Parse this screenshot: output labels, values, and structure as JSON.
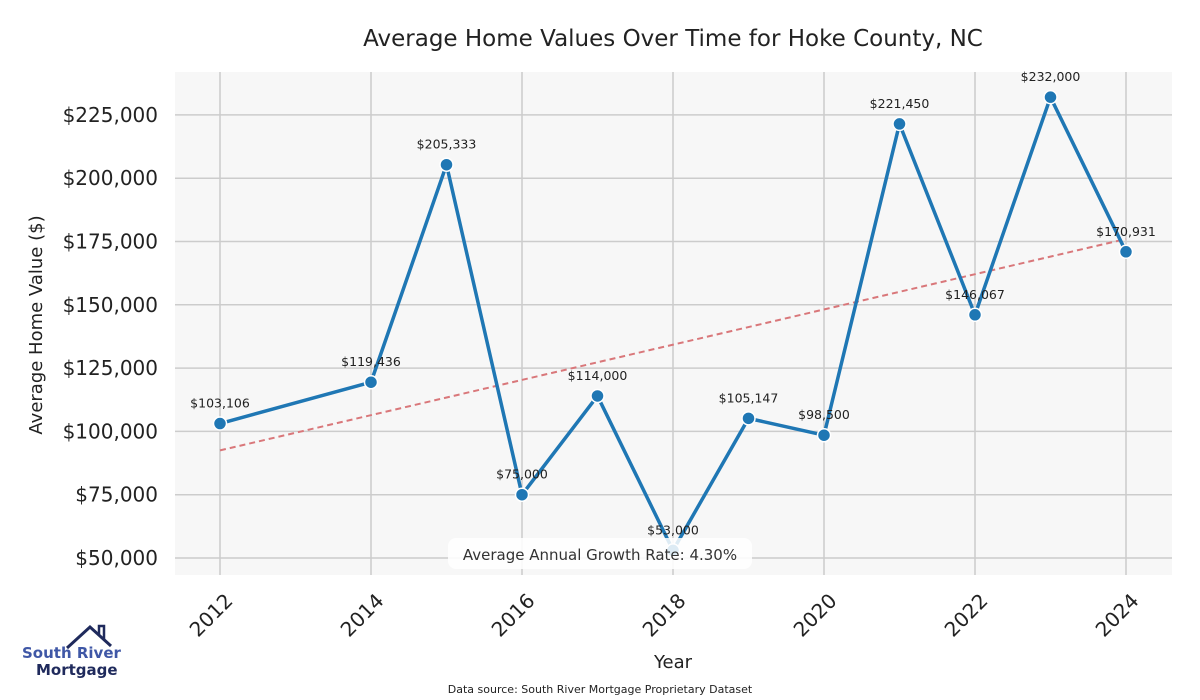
{
  "chart_data": {
    "type": "line",
    "title": "Average Home Values Over Time for Hoke County, NC",
    "xlabel": "Year",
    "ylabel": "Average Home Value ($)",
    "x": [
      2012,
      2014,
      2015,
      2016,
      2017,
      2018,
      2019,
      2020,
      2021,
      2022,
      2023,
      2024
    ],
    "values": [
      103106,
      119436,
      205333,
      75000,
      114000,
      53000,
      105147,
      98500,
      221450,
      146067,
      232000,
      170931
    ],
    "data_labels": [
      "$103,106",
      "$119,436",
      "$205,333",
      "$75,000",
      "$114,000",
      "$53,000",
      "$105,147",
      "$98,500",
      "$221,450",
      "$146,067",
      "$232,000",
      "$170,931"
    ],
    "xticks": [
      "2012",
      "2014",
      "2016",
      "2018",
      "2020",
      "2022",
      "2024"
    ],
    "yticks": [
      "$50,000",
      "$75,000",
      "$100,000",
      "$125,000",
      "$150,000",
      "$175,000",
      "$200,000",
      "$225,000"
    ],
    "ytick_values": [
      50000,
      75000,
      100000,
      125000,
      150000,
      175000,
      200000,
      225000
    ],
    "trend": {
      "start": [
        2012,
        92500
      ],
      "end": [
        2024,
        176000
      ]
    },
    "xlim": [
      2011.3,
      2024.6
    ],
    "ylim": [
      43000,
      245000
    ],
    "grid": true,
    "annotation": "Average Annual Growth Rate: 4.30%",
    "line_color": "#1f77b4",
    "trend_color": "#d9777a"
  },
  "footer": {
    "source": "Data source: South River Mortgage Proprietary Dataset"
  },
  "logo": {
    "line1": "South River",
    "line2": "Mortgage"
  }
}
